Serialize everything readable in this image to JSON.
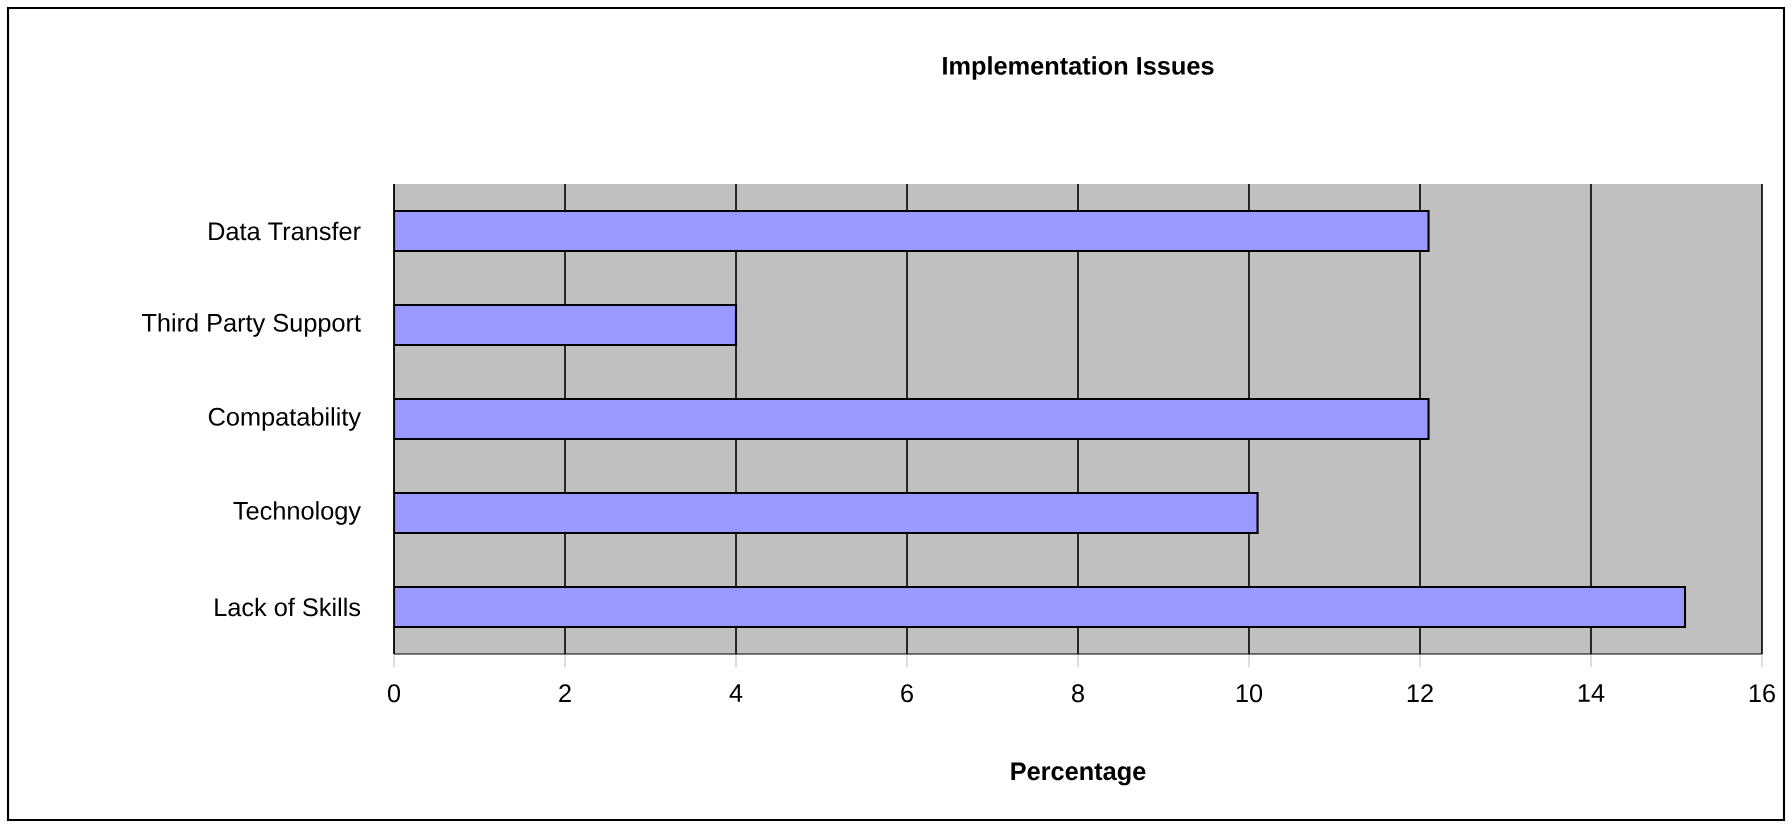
{
  "chart_data": {
    "type": "bar",
    "orientation": "horizontal",
    "title": "Implementation Issues",
    "xlabel": "Percentage",
    "categories": [
      "Data Transfer",
      "Third Party Support",
      "Compatability",
      "Technology",
      "Lack of Skills"
    ],
    "values": [
      12.1,
      4.0,
      12.1,
      10.1,
      15.1
    ],
    "color": "#9999ff",
    "xlim": [
      0,
      16
    ],
    "xticks": [
      0,
      2,
      4,
      6,
      8,
      10,
      12,
      14,
      16
    ],
    "grid": "x"
  }
}
